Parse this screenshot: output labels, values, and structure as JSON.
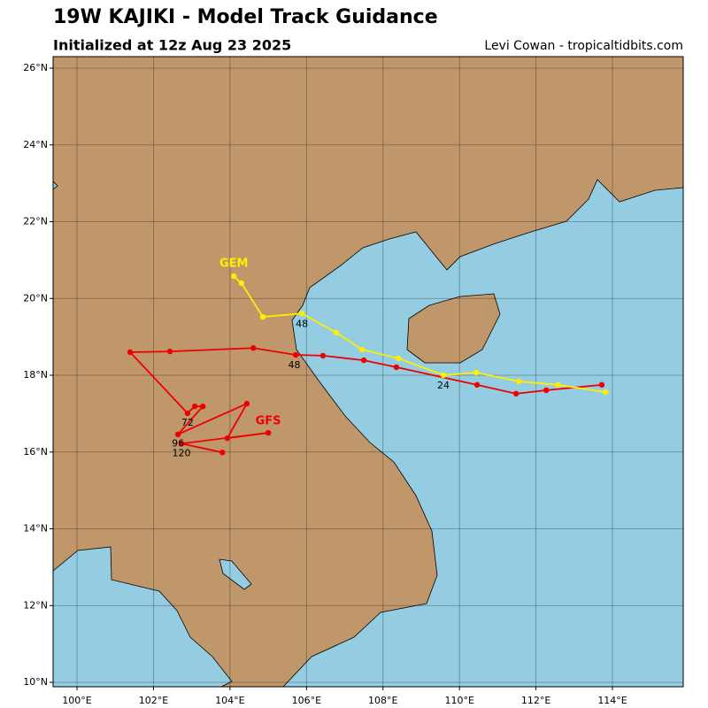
{
  "chart_data": {
    "type": "track",
    "title": "19W KAJIKI - Model Track Guidance",
    "subtitle": "Initialized at 12z Aug 23 2025",
    "credit": "Levi Cowan - tropicaltidbits.com",
    "xlim": [
      99.375,
      115.85
    ],
    "ylim": [
      9.885,
      26.3
    ],
    "xticks": [
      {
        "value": 100,
        "label": "100°E"
      },
      {
        "value": 102,
        "label": "102°E"
      },
      {
        "value": 104,
        "label": "104°E"
      },
      {
        "value": 106,
        "label": "106°E"
      },
      {
        "value": 108,
        "label": "108°E"
      },
      {
        "value": 110,
        "label": "110°E"
      },
      {
        "value": 112,
        "label": "112°E"
      },
      {
        "value": 114,
        "label": "114°E"
      }
    ],
    "yticks": [
      {
        "value": 10,
        "label": "10°N"
      },
      {
        "value": 12,
        "label": "12°N"
      },
      {
        "value": 14,
        "label": "14°N"
      },
      {
        "value": 16,
        "label": "16°N"
      },
      {
        "value": 18,
        "label": "18°N"
      },
      {
        "value": 20,
        "label": "20°N"
      },
      {
        "value": 22,
        "label": "22°N"
      },
      {
        "value": 24,
        "label": "24°N"
      },
      {
        "value": 26,
        "label": "26°N"
      }
    ],
    "grid": true,
    "series": [
      {
        "name": "GFS",
        "color": "#ee0000",
        "x": [
          113.72,
          112.27,
          111.48,
          110.46,
          108.35,
          107.5,
          106.43,
          105.72,
          104.61,
          102.43,
          101.39,
          102.89,
          103.08,
          103.29,
          102.64,
          104.44,
          103.93,
          105.0,
          102.73,
          103.8
        ],
        "values": [
          17.75,
          17.61,
          17.52,
          17.75,
          18.21,
          18.39,
          18.51,
          18.53,
          18.71,
          18.62,
          18.6,
          17.01,
          17.19,
          17.19,
          16.46,
          17.26,
          16.36,
          16.5,
          16.22,
          15.99
        ],
        "name_lon": 105.0,
        "name_lat": 16.8
      },
      {
        "name": "GEM",
        "color": "#ffee00",
        "x": [
          113.82,
          112.57,
          111.55,
          110.44,
          109.58,
          108.4,
          107.45,
          106.78,
          105.88,
          104.86,
          104.3,
          104.1
        ],
        "values": [
          17.56,
          17.75,
          17.84,
          18.07,
          18.0,
          18.44,
          18.67,
          19.11,
          19.61,
          19.52,
          20.4,
          20.58
        ],
        "name_lon": 104.1,
        "name_lat": 20.9
      }
    ],
    "annotations": [
      {
        "text": "24",
        "lon": 109.58,
        "lat": 17.72
      },
      {
        "text": "48",
        "lon": 105.88,
        "lat": 19.33
      },
      {
        "text": "48",
        "lon": 105.68,
        "lat": 18.25
      },
      {
        "text": "72",
        "lon": 102.89,
        "lat": 16.76
      },
      {
        "text": "96",
        "lon": 102.64,
        "lat": 16.21
      },
      {
        "text": "120",
        "lon": 102.73,
        "lat": 15.96
      }
    ]
  }
}
